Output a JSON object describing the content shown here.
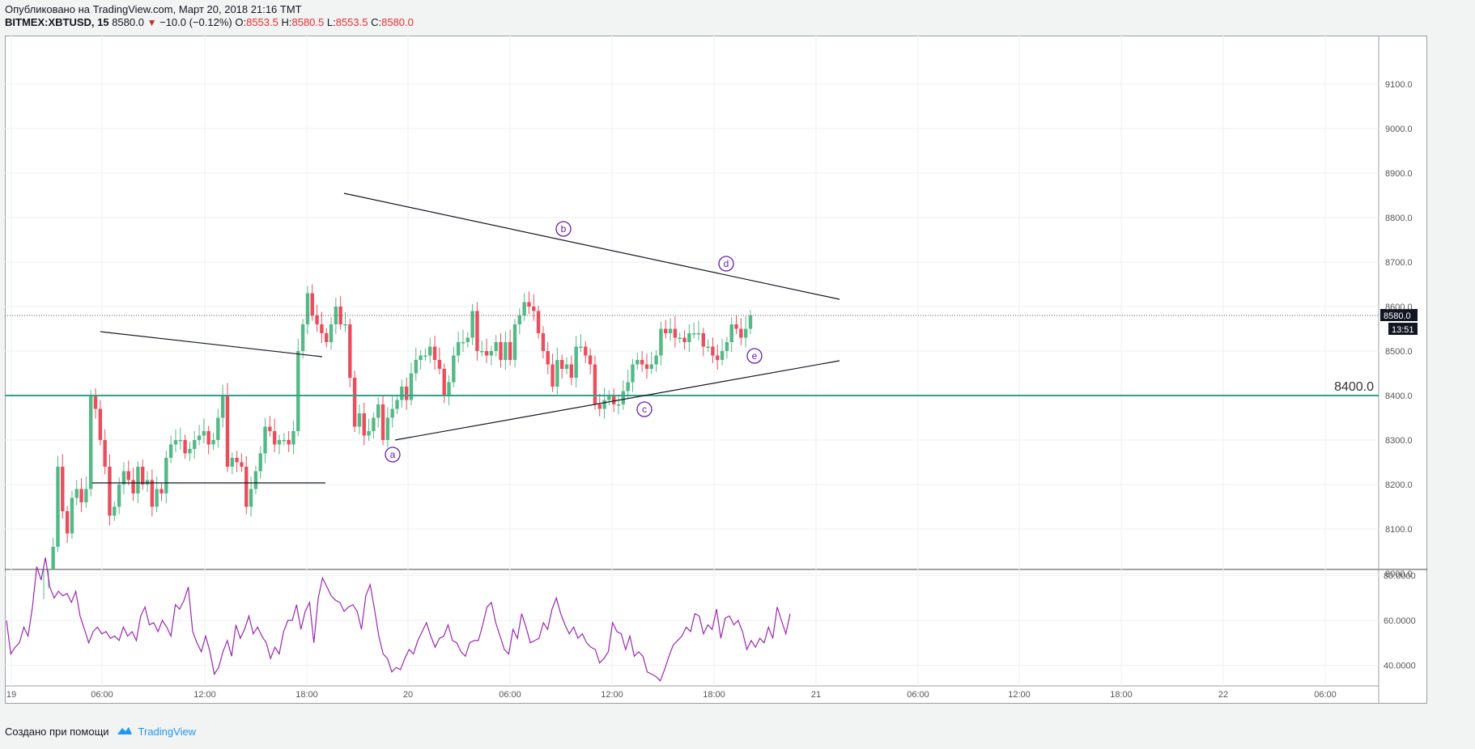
{
  "header": {
    "published": "Опубликовано на TradingView.com, Март 20, 2018 21:16 ТМТ",
    "symbol": "BITMEX:XBTUSD, 15",
    "last": "8580.0",
    "change": "−10.0 (−0.12%)",
    "o_label": "O:",
    "o_value": "8553.5",
    "h_label": "H:",
    "h_value": "8580.5",
    "l_label": "L:",
    "l_value": "8553.5",
    "c_label": "C:",
    "c_value": "8580.0"
  },
  "footer": {
    "created_with": "Создано при помощи",
    "brand": "TradingView"
  },
  "colors": {
    "up": "#53b987",
    "down": "#eb4d5c",
    "rsi": "#9c27b0",
    "hline": "#2ea58a",
    "wave": "#6a1bb4"
  },
  "chart_data": {
    "type": "candlestick",
    "price_axis": [
      "9100.0",
      "9000.0",
      "8900.0",
      "8800.0",
      "8700.0",
      "8600.0",
      "8500.0",
      "8400.0",
      "8300.0",
      "8200.0",
      "8100.0",
      "8000.0"
    ],
    "price_ticks": [
      9100,
      9000,
      8900,
      8800,
      8700,
      8600,
      8500,
      8400,
      8300,
      8200,
      8100,
      8000
    ],
    "last_price": {
      "value": 8580.0,
      "label": "8580.0",
      "countdown": "13:51"
    },
    "horizontal_line": {
      "value": 8400.0,
      "label": "8400.0"
    },
    "rsi_axis": [
      "80.0000",
      "60.0000",
      "40.0000"
    ],
    "rsi_ticks": [
      80,
      60,
      40
    ],
    "time_axis": [
      "19",
      "06:00",
      "12:00",
      "18:00",
      "20",
      "06:00",
      "12:00",
      "18:00",
      "21",
      "06:00",
      "12:00",
      "18:00",
      "22",
      "06:00"
    ],
    "wave_labels": [
      "a",
      "b",
      "c",
      "d",
      "e"
    ],
    "closes": [
      7930,
      7950,
      8060,
      8240,
      8140,
      8090,
      8170,
      8190,
      8160,
      8190,
      8400,
      8370,
      8300,
      8240,
      8130,
      8150,
      8200,
      8230,
      8210,
      8180,
      8240,
      8200,
      8210,
      8150,
      8190,
      8180,
      8260,
      8290,
      8300,
      8300,
      8270,
      8280,
      8300,
      8310,
      8320,
      8290,
      8300,
      8350,
      8400,
      8240,
      8260,
      8250,
      8240,
      8150,
      8190,
      8230,
      8270,
      8330,
      8320,
      8290,
      8300,
      8300,
      8290,
      8320,
      8500,
      8560,
      8630,
      8580,
      8560,
      8540,
      8520,
      8560,
      8600,
      8560,
      8560,
      8440,
      8330,
      8360,
      8310,
      8320,
      8350,
      8380,
      8300,
      8350,
      8370,
      8390,
      8420,
      8390,
      8450,
      8480,
      8490,
      8490,
      8510,
      8480,
      8460,
      8400,
      8430,
      8490,
      8520,
      8520,
      8530,
      8590,
      8500,
      8500,
      8490,
      8500,
      8520,
      8480,
      8520,
      8480,
      8560,
      8580,
      8610,
      8600,
      8590,
      8540,
      8500,
      8470,
      8420,
      8480,
      8460,
      8470,
      8440,
      8510,
      8510,
      8490,
      8470,
      8380,
      8370,
      8390,
      8400,
      8380,
      8380,
      8410,
      8430,
      8470,
      8480,
      8470,
      8460,
      8470,
      8490,
      8550,
      8540,
      8550,
      8530,
      8530,
      8520,
      8540,
      8540,
      8540,
      8510,
      8510,
      8490,
      8480,
      8500,
      8520,
      8560,
      8550,
      8530,
      8550,
      8580
    ],
    "rsi": [
      60,
      45,
      48,
      50,
      57,
      53,
      66,
      84,
      78,
      88,
      75,
      70,
      73,
      71,
      72,
      68,
      73,
      62,
      56,
      50,
      55,
      57,
      54,
      55,
      52,
      53,
      51,
      57,
      53,
      55,
      51,
      62,
      66,
      58,
      59,
      55,
      60,
      57,
      53,
      67,
      65,
      69,
      75,
      55,
      50,
      46,
      53,
      46,
      36,
      39,
      46,
      51,
      44,
      58,
      52,
      56,
      62,
      54,
      57,
      53,
      50,
      43,
      48,
      45,
      55,
      60,
      60,
      67,
      56,
      64,
      68,
      50,
      70,
      79,
      75,
      71,
      69,
      68,
      64,
      66,
      67,
      64,
      56,
      71,
      76,
      65,
      53,
      45,
      43,
      37,
      39,
      38,
      43,
      47,
      45,
      51,
      55,
      59,
      53,
      48,
      52,
      53,
      58,
      51,
      50,
      46,
      44,
      50,
      51,
      51,
      58,
      66,
      68,
      59,
      53,
      47,
      45,
      56,
      52,
      63,
      57,
      50,
      51,
      52,
      59,
      56,
      65,
      70,
      63,
      58,
      54,
      57,
      52,
      54,
      50,
      48,
      47,
      41,
      43,
      46,
      59,
      55,
      54,
      47,
      53,
      44,
      46,
      44,
      37,
      36,
      35,
      33,
      38,
      44,
      49,
      51,
      53,
      57,
      55,
      63,
      62,
      54,
      58,
      56,
      65,
      52,
      61,
      62,
      58,
      60,
      55,
      47,
      51,
      48,
      52,
      50,
      57,
      52,
      66,
      60,
      54,
      63
    ]
  }
}
